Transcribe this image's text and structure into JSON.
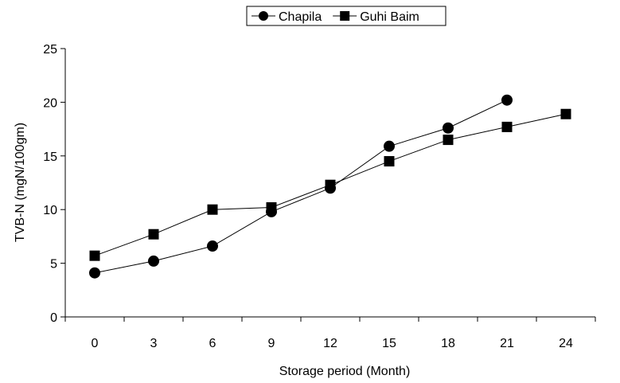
{
  "chart_data": {
    "type": "line",
    "title": "",
    "xlabel": "Storage period (Month)",
    "ylabel": "TVB-N (mgN/100gm)",
    "x_ticks": [
      "0",
      "3",
      "6",
      "9",
      "12",
      "15",
      "18",
      "21",
      "24"
    ],
    "y_ticks": [
      "0",
      "5",
      "10",
      "15",
      "20",
      "25"
    ],
    "xlim": [
      0,
      24
    ],
    "ylim": [
      0,
      25
    ],
    "grid": false,
    "legend_position": "top-center",
    "series": [
      {
        "name": "Chapila",
        "marker": "circle",
        "color": "#000000",
        "x": [
          0,
          3,
          6,
          9,
          12,
          15,
          18,
          21
        ],
        "y": [
          4.1,
          5.2,
          6.6,
          9.8,
          12.0,
          15.9,
          17.6,
          20.2
        ]
      },
      {
        "name": "Guhi Baim",
        "marker": "square",
        "color": "#000000",
        "x": [
          0,
          3,
          6,
          9,
          12,
          15,
          18,
          21,
          24
        ],
        "y": [
          5.7,
          7.7,
          10.0,
          10.2,
          12.3,
          14.5,
          16.5,
          17.7,
          18.9
        ]
      }
    ]
  }
}
